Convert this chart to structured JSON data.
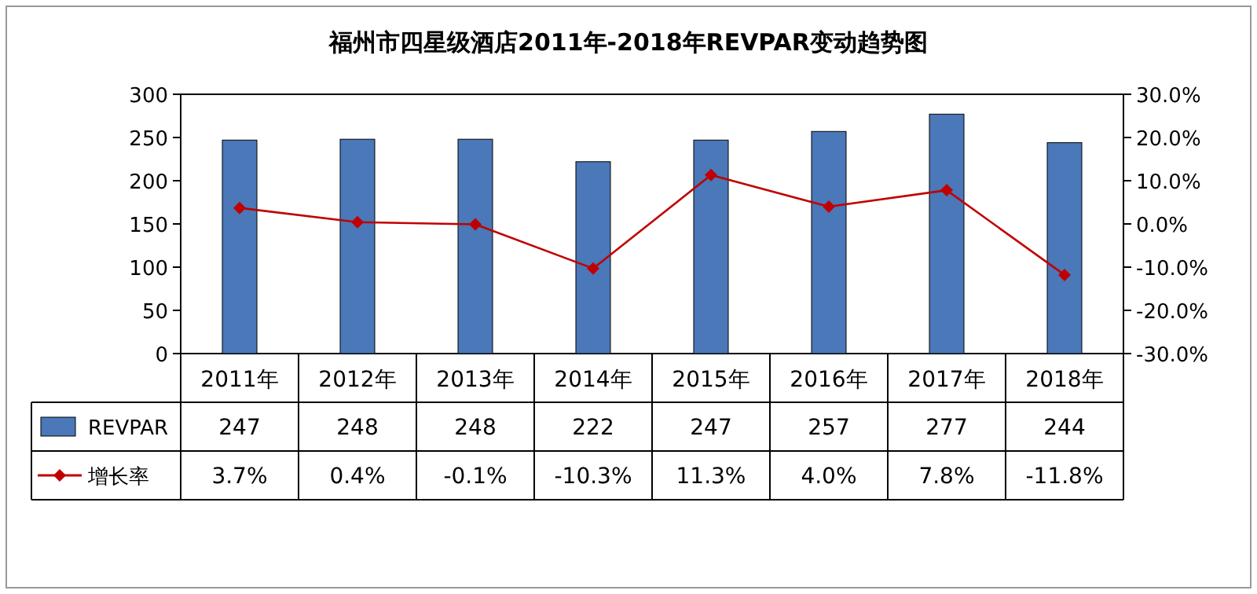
{
  "chart_data": {
    "type": "bar",
    "title": "福州市四星级酒店2011年-2018年REVPAR变动趋势图",
    "categories": [
      "2011年",
      "2012年",
      "2013年",
      "2014年",
      "2015年",
      "2016年",
      "2017年",
      "2018年"
    ],
    "series": [
      {
        "name": "REVPAR",
        "color": "#4a78b8",
        "values": [
          247,
          248,
          248,
          222,
          247,
          257,
          277,
          244
        ],
        "value_labels": [
          "247",
          "248",
          "248",
          "222",
          "247",
          "257",
          "277",
          "244"
        ]
      },
      {
        "name": "增长率",
        "type": "line",
        "axis": "y2",
        "color": "#c00000",
        "marker": "diamond",
        "values": [
          3.7,
          0.4,
          -0.1,
          -10.3,
          11.3,
          4.0,
          7.8,
          -11.8
        ],
        "value_labels": [
          "3.7%",
          "0.4%",
          "-0.1%",
          "-10.3%",
          "11.3%",
          "4.0%",
          "7.8%",
          "-11.8%"
        ]
      }
    ],
    "ylim": [
      0,
      300
    ],
    "yticks": [
      0,
      50,
      100,
      150,
      200,
      250,
      300
    ],
    "y2lim": [
      -30,
      30
    ],
    "y2ticks": [
      {
        "value": -30,
        "label": "-30.0%"
      },
      {
        "value": -20,
        "label": "-20.0%"
      },
      {
        "value": -10,
        "label": "-10.0%"
      },
      {
        "value": 0,
        "label": "0.0%"
      },
      {
        "value": 10,
        "label": "10.0%"
      },
      {
        "value": 20,
        "label": "20.0%"
      },
      {
        "value": 30,
        "label": "30.0%"
      }
    ],
    "legend": "bottom"
  }
}
